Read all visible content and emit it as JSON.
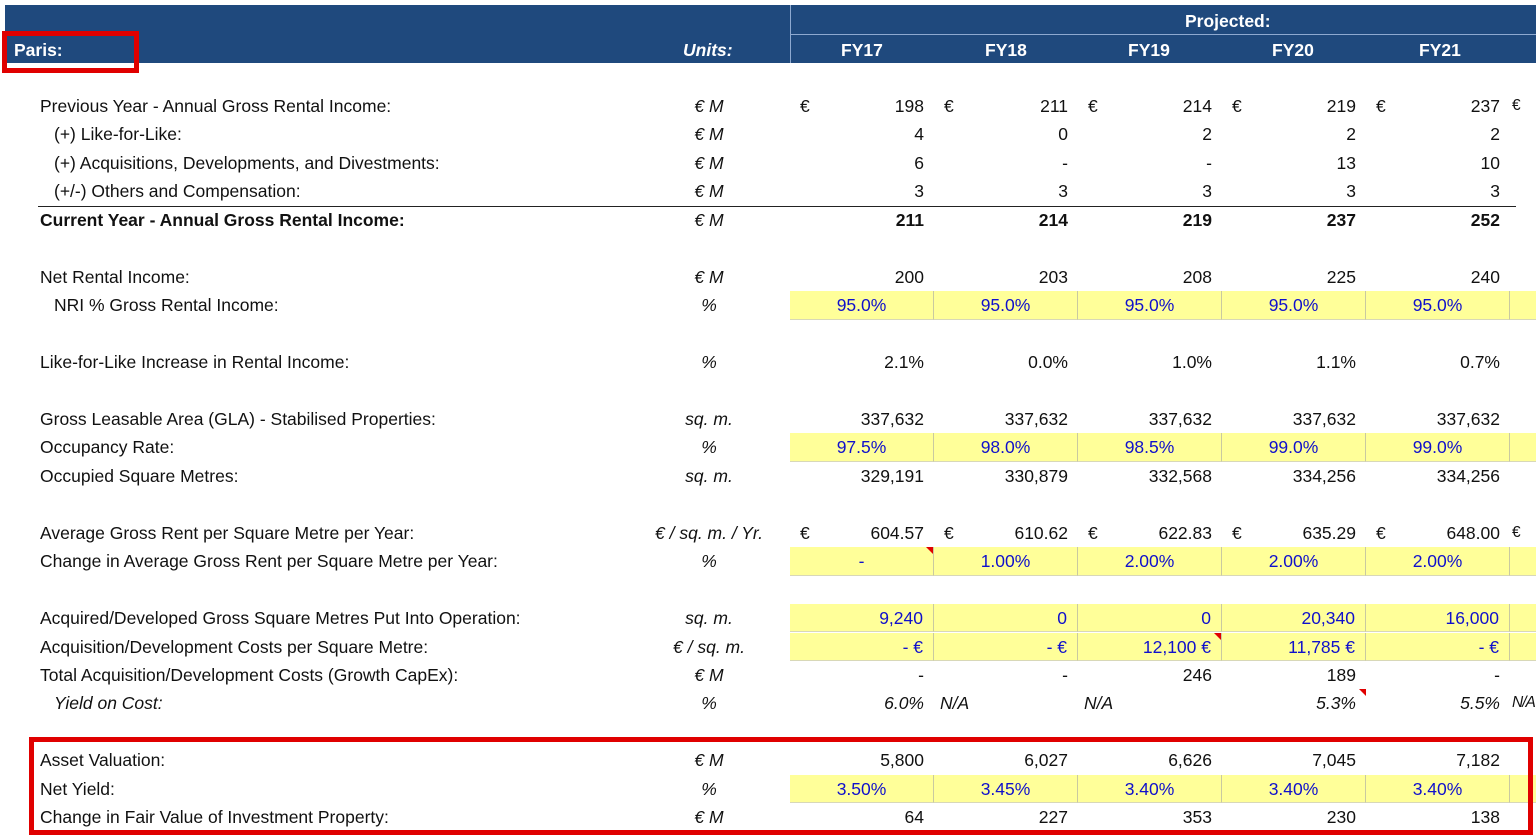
{
  "header": {
    "section_label": "Paris:",
    "units_label": "Units:",
    "projected_label": "Projected:",
    "years": [
      "FY17",
      "FY18",
      "FY19",
      "FY20",
      "FY21"
    ]
  },
  "colors": {
    "header_bg": "#1F497D",
    "input_fill": "#FFFF99",
    "input_text": "#1010CC",
    "highlight_box": "#E00000"
  },
  "rows": [
    {
      "label": "Previous Year - Annual Gross Rental Income:",
      "units": "€ M",
      "euro": true,
      "values": [
        "198",
        "211",
        "214",
        "219",
        "237"
      ],
      "extra": "€",
      "align": "r"
    },
    {
      "label": "(+) Like-for-Like:",
      "indent": true,
      "units": "€ M",
      "values": [
        "4",
        "0",
        "2",
        "2",
        "2"
      ],
      "align": "r"
    },
    {
      "label": "(+) Acquisitions, Developments, and Divestments:",
      "indent": true,
      "units": "€ M",
      "values": [
        "6",
        "-",
        "-",
        "13",
        "10"
      ],
      "align": "r"
    },
    {
      "label": "(+/-) Others and Compensation:",
      "indent": true,
      "units": "€ M",
      "values": [
        "3",
        "3",
        "3",
        "3",
        "3"
      ],
      "align": "r"
    },
    {
      "label": "Current Year - Annual Gross Rental Income:",
      "bold": true,
      "topline": true,
      "units": "€ M",
      "values": [
        "211",
        "214",
        "219",
        "237",
        "252"
      ],
      "align": "r"
    },
    null,
    {
      "label": "Net Rental Income:",
      "units": "€ M",
      "values": [
        "200",
        "203",
        "208",
        "225",
        "240"
      ],
      "align": "r"
    },
    {
      "label": "NRI % Gross Rental Income:",
      "indent": true,
      "units": "%",
      "yellow": true,
      "values": [
        "95.0%",
        "95.0%",
        "95.0%",
        "95.0%",
        "95.0%"
      ],
      "align": "c"
    },
    null,
    {
      "label": "Like-for-Like Increase in Rental Income:",
      "units": "%",
      "values": [
        "2.1%",
        "0.0%",
        "1.0%",
        "1.1%",
        "0.7%"
      ],
      "align": "r"
    },
    null,
    {
      "label": "Gross Leasable Area (GLA) - Stabilised Properties:",
      "units": "sq. m.",
      "values": [
        "337,632",
        "337,632",
        "337,632",
        "337,632",
        "337,632"
      ],
      "align": "r"
    },
    {
      "label": "Occupancy Rate:",
      "units": "%",
      "yellow": true,
      "values": [
        "97.5%",
        "98.0%",
        "98.5%",
        "99.0%",
        "99.0%"
      ],
      "align": "c"
    },
    {
      "label": "Occupied Square Metres:",
      "units": "sq. m.",
      "values": [
        "329,191",
        "330,879",
        "332,568",
        "334,256",
        "334,256"
      ],
      "align": "r"
    },
    null,
    {
      "label": "Average Gross Rent per Square Metre per Year:",
      "units": "€ / sq. m. / Yr.",
      "euro": true,
      "values": [
        "604.57",
        "610.62",
        "622.83",
        "635.29",
        "648.00"
      ],
      "extra": "€",
      "align": "r"
    },
    {
      "label": "Change in Average Gross Rent per Square Metre per Year:",
      "units": "%",
      "yellow": true,
      "values": [
        "-",
        "1.00%",
        "2.00%",
        "2.00%",
        "2.00%"
      ],
      "comments": [
        0
      ],
      "align": "c"
    },
    null,
    {
      "label": "Acquired/Developed Gross Square Metres Put Into Operation:",
      "units": "sq. m.",
      "yellow": true,
      "values": [
        "9,240",
        "0",
        "0",
        "20,340",
        "16,000"
      ],
      "align": "r"
    },
    {
      "label": "Acquisition/Development Costs per Square Metre:",
      "units": "€ / sq. m.",
      "yellow": true,
      "values": [
        "- €",
        "- €",
        "12,100 €",
        "11,785 €",
        "- €"
      ],
      "comments": [
        2
      ],
      "align": "r"
    },
    {
      "label": "Total Acquisition/Development Costs (Growth CapEx):",
      "units": "€ M",
      "values": [
        "-",
        "-",
        "246",
        "189",
        "-"
      ],
      "align": "r"
    },
    {
      "label": "Yield on Cost:",
      "indent": true,
      "italic": true,
      "units": "%",
      "values": [
        "6.0%",
        "N/A",
        "N/A",
        "5.3%",
        "5.5%"
      ],
      "aligns": [
        "r",
        "l",
        "l",
        "r",
        "r"
      ],
      "comments": [
        3
      ],
      "extra": "N/A",
      "align": "r"
    },
    null,
    {
      "label": "Asset Valuation:",
      "units": "€ M",
      "values": [
        "5,800",
        "6,027",
        "6,626",
        "7,045",
        "7,182"
      ],
      "align": "r"
    },
    {
      "label": "Net Yield:",
      "units": "%",
      "yellow": true,
      "values": [
        "3.50%",
        "3.45%",
        "3.40%",
        "3.40%",
        "3.40%"
      ],
      "align": "c"
    },
    {
      "label": "Change in Fair Value of Investment Property:",
      "units": "€ M",
      "values": [
        "64",
        "227",
        "353",
        "230",
        "138"
      ],
      "align": "r"
    }
  ]
}
